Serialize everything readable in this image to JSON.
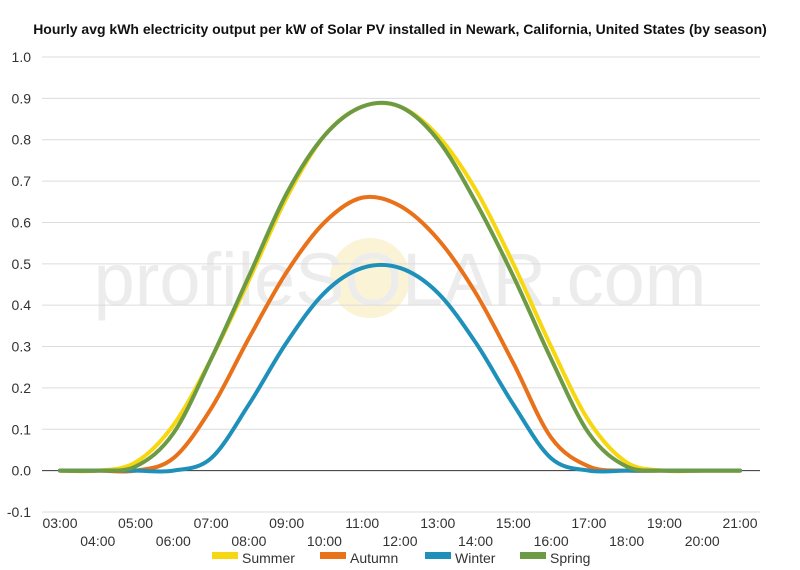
{
  "chart_data": {
    "type": "line",
    "title": "Hourly avg kWh electricity output per kW of Solar PV installed in Newark, California, United States (by season)",
    "xlabel": "",
    "ylabel": "",
    "ylim": [
      -0.1,
      1.0
    ],
    "yticks": [
      "-0.1",
      "0.0",
      "0.1",
      "0.2",
      "0.3",
      "0.4",
      "0.5",
      "0.6",
      "0.7",
      "0.8",
      "0.9",
      "1.0"
    ],
    "xticks": [
      "03:00",
      "04:00",
      "05:00",
      "06:00",
      "07:00",
      "08:00",
      "09:00",
      "10:00",
      "11:00",
      "12:00",
      "13:00",
      "14:00",
      "15:00",
      "16:00",
      "17:00",
      "18:00",
      "19:00",
      "20:00",
      "21:00"
    ],
    "grid": true,
    "legend": "bottom",
    "watermark": "profileSOLAR.com",
    "x": [
      "03:00",
      "04:00",
      "05:00",
      "06:00",
      "07:00",
      "08:00",
      "09:00",
      "10:00",
      "11:00",
      "12:00",
      "13:00",
      "14:00",
      "15:00",
      "16:00",
      "17:00",
      "18:00",
      "19:00",
      "20:00",
      "21:00"
    ],
    "series": [
      {
        "name": "Summer",
        "color": "#F7D70F",
        "values": [
          0,
          0,
          0.02,
          0.11,
          0.27,
          0.46,
          0.66,
          0.81,
          0.88,
          0.88,
          0.81,
          0.68,
          0.5,
          0.3,
          0.12,
          0.02,
          0,
          0,
          0
        ]
      },
      {
        "name": "Autumn",
        "color": "#E8711A",
        "values": [
          0,
          0,
          0,
          0.03,
          0.15,
          0.32,
          0.48,
          0.6,
          0.66,
          0.64,
          0.56,
          0.43,
          0.26,
          0.08,
          0.01,
          0,
          0,
          0,
          0
        ]
      },
      {
        "name": "Winter",
        "color": "#1E90BA",
        "values": [
          0,
          0,
          0,
          0,
          0.03,
          0.16,
          0.31,
          0.43,
          0.49,
          0.49,
          0.43,
          0.31,
          0.16,
          0.03,
          0,
          0,
          0,
          0,
          0
        ]
      },
      {
        "name": "Spring",
        "color": "#6C9A45",
        "values": [
          0,
          0,
          0.01,
          0.09,
          0.27,
          0.47,
          0.67,
          0.81,
          0.88,
          0.88,
          0.8,
          0.65,
          0.47,
          0.27,
          0.09,
          0.01,
          0,
          0,
          0
        ]
      }
    ]
  }
}
